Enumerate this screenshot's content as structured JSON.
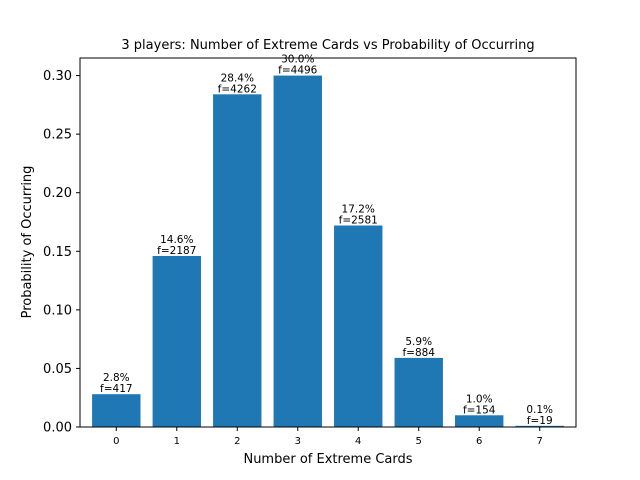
{
  "chart_data": {
    "type": "bar",
    "title": "3 players: Number of Extreme Cards vs Probability of Occurring",
    "xlabel": "Number of Extreme Cards",
    "ylabel": "Probability of Occurring",
    "categories": [
      "0",
      "1",
      "2",
      "3",
      "4",
      "5",
      "6",
      "7"
    ],
    "values": [
      0.028,
      0.146,
      0.284,
      0.3,
      0.172,
      0.059,
      0.01,
      0.001
    ],
    "bar_labels": [
      [
        "2.8%",
        "f=417"
      ],
      [
        "14.6%",
        "f=2187"
      ],
      [
        "28.4%",
        "f=4262"
      ],
      [
        "30.0%",
        "f=4496"
      ],
      [
        "17.2%",
        "f=2581"
      ],
      [
        "5.9%",
        "f=884"
      ],
      [
        "1.0%",
        "f=154"
      ],
      [
        "0.1%",
        "f=19"
      ]
    ],
    "yticks": [
      0.0,
      0.05,
      0.1,
      0.15,
      0.2,
      0.25,
      0.3
    ],
    "ytick_labels": [
      "0.00",
      "0.05",
      "0.10",
      "0.15",
      "0.20",
      "0.25",
      "0.30"
    ],
    "ylim": [
      0,
      0.315
    ],
    "bar_color": "#1f77b4",
    "grid": false
  }
}
